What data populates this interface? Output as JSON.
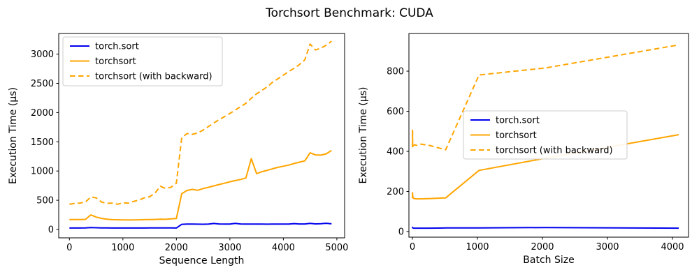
{
  "title": "Torchsort Benchmark: CUDA",
  "colors": {
    "torch_sort_line": "#0000ee",
    "torchsort_line": "#ffa500",
    "axis": "#000000",
    "tick_label": "#000000",
    "legend_border": "#cccccc",
    "legend_background": "#ffffff"
  },
  "chart_data": [
    {
      "type": "line",
      "xlabel": "Sequence Length",
      "ylabel": "Execution Time (µs)",
      "xlim": [
        -200,
        5145
      ],
      "ylim": [
        -143,
        3353
      ],
      "xticks": [
        0,
        1000,
        2000,
        3000,
        4000,
        5000
      ],
      "yticks": [
        0,
        500,
        1000,
        1500,
        2000,
        2500,
        3000
      ],
      "grid": false,
      "legend_position": "upper-left",
      "x": [
        0,
        100,
        200,
        300,
        400,
        500,
        600,
        700,
        800,
        900,
        1000,
        1100,
        1200,
        1300,
        1400,
        1500,
        1600,
        1700,
        1800,
        1900,
        2000,
        2100,
        2200,
        2300,
        2400,
        2500,
        2600,
        2700,
        2800,
        2900,
        3000,
        3100,
        3200,
        3300,
        3400,
        3500,
        3600,
        3700,
        3800,
        3900,
        4000,
        4100,
        4200,
        4300,
        4400,
        4500,
        4600,
        4700,
        4800,
        4900
      ],
      "series": [
        {
          "name": "torch.sort",
          "color": "#0000ee",
          "dash": "solid",
          "values": [
            25,
            25,
            25,
            26,
            33,
            30,
            27,
            26,
            25,
            25,
            25,
            25,
            25,
            25,
            25,
            26,
            26,
            26,
            26,
            26,
            25,
            88,
            93,
            92,
            91,
            90,
            92,
            103,
            95,
            92,
            93,
            104,
            94,
            92,
            93,
            92,
            92,
            91,
            92,
            92,
            93,
            92,
            101,
            95,
            94,
            104,
            96,
            99,
            106,
            97
          ]
        },
        {
          "name": "torchsort",
          "color": "#ffa500",
          "dash": "solid",
          "values": [
            170,
            170,
            170,
            173,
            250,
            212,
            190,
            176,
            168,
            166,
            165,
            163,
            165,
            166,
            168,
            170,
            172,
            176,
            174,
            181,
            188,
            612,
            668,
            686,
            671,
            700,
            722,
            746,
            770,
            791,
            816,
            836,
            856,
            882,
            1212,
            956,
            989,
            1012,
            1040,
            1063,
            1082,
            1102,
            1129,
            1151,
            1173,
            1312,
            1276,
            1272,
            1293,
            1352
          ]
        },
        {
          "name": "torchsort (with backward)",
          "color": "#ffa500",
          "dash": "dashed",
          "values": [
            432,
            447,
            452,
            470,
            556,
            541,
            470,
            447,
            452,
            432,
            456,
            450,
            481,
            503,
            541,
            561,
            621,
            741,
            701,
            723,
            791,
            1572,
            1641,
            1628,
            1653,
            1701,
            1763,
            1821,
            1881,
            1931,
            1986,
            2042,
            2101,
            2159,
            2246,
            2321,
            2381,
            2442,
            2521,
            2579,
            2641,
            2701,
            2759,
            2821,
            2901,
            3172,
            3071,
            3101,
            3151,
            3221
          ]
        }
      ]
    },
    {
      "type": "line",
      "xlabel": "Batch Size",
      "ylabel": "Execution Time (µs)",
      "xlim": [
        -54,
        4247
      ],
      "ylim": [
        -28,
        988
      ],
      "xticks": [
        0,
        1000,
        2000,
        3000,
        4000
      ],
      "yticks": [
        0,
        200,
        400,
        600,
        800
      ],
      "grid": false,
      "legend_position": "center-right",
      "x": [
        1,
        2,
        4,
        8,
        16,
        32,
        64,
        128,
        256,
        512,
        1024,
        2048,
        4096
      ],
      "series": [
        {
          "name": "torch.sort",
          "color": "#0000ee",
          "dash": "solid",
          "values": [
            18,
            21,
            19,
            18,
            17,
            17,
            17,
            17,
            17,
            18,
            18,
            20,
            17
          ]
        },
        {
          "name": "torchsort",
          "color": "#ffa500",
          "dash": "solid",
          "values": [
            166,
            194,
            178,
            170,
            166,
            164,
            163,
            163,
            164,
            168,
            305,
            366,
            483
          ]
        },
        {
          "name": "torchsort (with backward)",
          "color": "#ffa500",
          "dash": "dashed",
          "values": [
            420,
            505,
            428,
            424,
            430,
            433,
            430,
            436,
            430,
            408,
            781,
            816,
            931
          ]
        }
      ]
    }
  ]
}
